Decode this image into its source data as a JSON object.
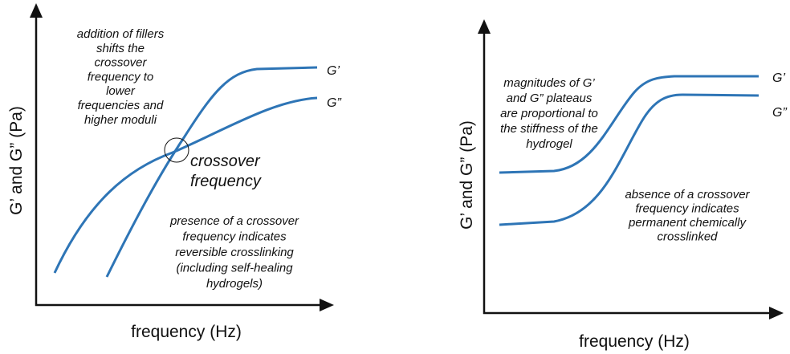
{
  "panels": [
    {
      "y_label": "G’ and G” (Pa)",
      "x_label": "frequency (Hz)",
      "curve_labels": [
        "G’",
        "G”"
      ],
      "annotations": [
        [
          "addition of fillers",
          "shifts the",
          "crossover",
          "frequency to",
          "lower",
          "frequencies and",
          "higher moduli"
        ],
        [
          "crossover",
          "frequency"
        ],
        [
          "presence of a crossover",
          "frequency indicates",
          "reversible crosslinking",
          "(including self-healing",
          "hydrogels)"
        ]
      ]
    },
    {
      "y_label": "G’ and G” (Pa)",
      "x_label": "frequency (Hz)",
      "curve_labels": [
        "G’",
        "G”"
      ],
      "annotations": [
        [
          "magnitudes of G’",
          "and G” plateaus",
          "are proportional to",
          "the stiffness of the",
          "hydrogel"
        ],
        [
          "absence of a crossover",
          "frequency indicates",
          "permanent chemically",
          "crosslinked"
        ]
      ]
    }
  ]
}
